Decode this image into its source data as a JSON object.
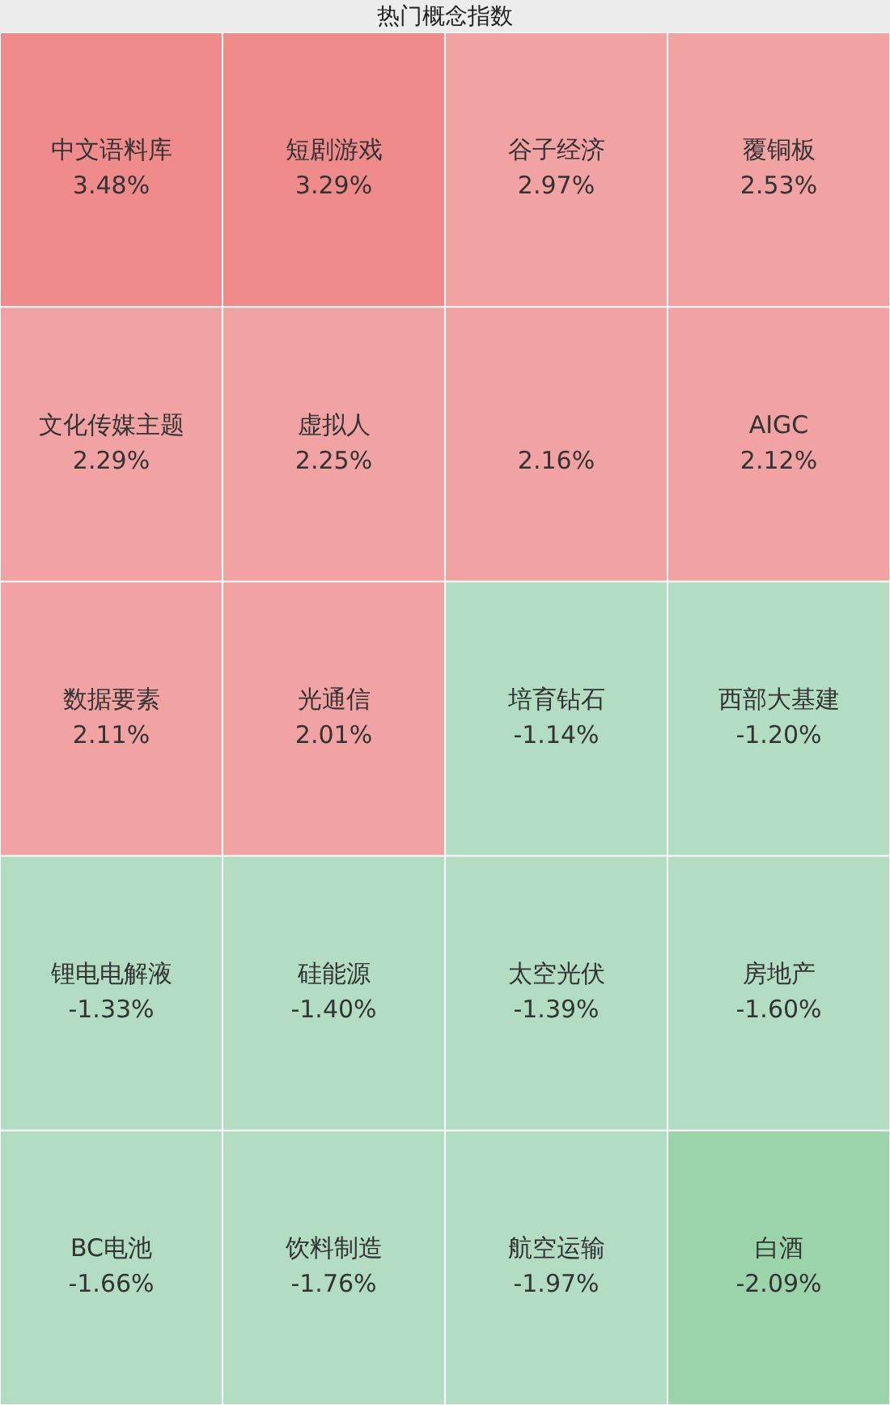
{
  "chart_data": {
    "type": "other",
    "title": "热门概念指数",
    "categories": [
      "中文语料库",
      "短剧游戏",
      "谷子经济",
      "覆铜板",
      "文化传媒主题",
      "虚拟人",
      null,
      "AIGC",
      "数据要素",
      "光通信",
      "培育钻石",
      "西部大基建",
      "锂电电解液",
      "硅能源",
      "太空光伏",
      "房地产",
      "BC电池",
      "饮料制造",
      "航空运输",
      "白酒"
    ],
    "values": [
      3.48,
      3.29,
      2.97,
      2.53,
      2.29,
      2.25,
      2.16,
      2.12,
      2.11,
      2.01,
      -1.14,
      -1.2,
      -1.33,
      -1.4,
      -1.39,
      -1.6,
      -1.66,
      -1.76,
      -1.97,
      -2.09
    ],
    "value_labels": [
      "3.48%",
      "3.29%",
      "2.97%",
      "2.53%",
      "2.29%",
      "2.25%",
      "2.16%",
      "2.12%",
      "2.11%",
      "2.01%",
      "-1.14%",
      "-1.20%",
      "-1.33%",
      "-1.40%",
      "-1.39%",
      "-1.60%",
      "-1.66%",
      "-1.76%",
      "-1.97%",
      "-2.09%"
    ],
    "colors": [
      "#ef8b8b",
      "#ef8b8b",
      "#f1a2a2",
      "#f1a2a2",
      "#f1a2a2",
      "#f1a2a2",
      "#f1a2a2",
      "#f1a2a2",
      "#f1a2a2",
      "#f1a2a2",
      "#b2ddc3",
      "#b2ddc3",
      "#b2ddc3",
      "#b2ddc3",
      "#b2ddc3",
      "#b2ddc3",
      "#b2ddc3",
      "#b2ddc3",
      "#b2ddc3",
      "#9bd3aa"
    ]
  }
}
